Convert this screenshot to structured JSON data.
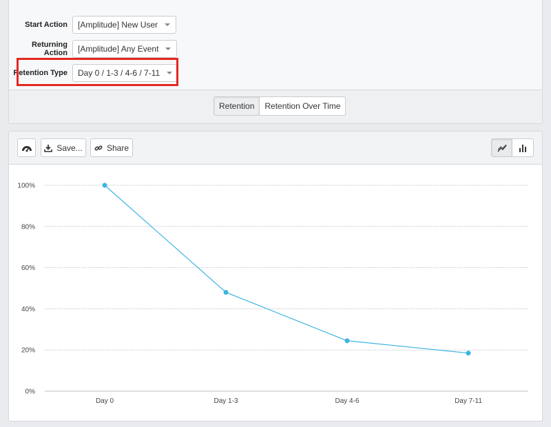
{
  "filters": {
    "start_action": {
      "label": "Start Action",
      "value": "[Amplitude] New User"
    },
    "returning_action": {
      "label": "Returning Action",
      "value": "[Amplitude] Any Event"
    },
    "retention_type": {
      "label": "Retention Type",
      "value": "Day 0 / 1-3 / 4-6 / 7-11"
    }
  },
  "view_tabs": [
    {
      "label": "Retention",
      "active": true
    },
    {
      "label": "Retention Over Time",
      "active": false
    }
  ],
  "toolbar": {
    "dashboard_icon": "dashboard-icon",
    "save_label": "Save...",
    "share_label": "Share",
    "line_chart_icon": "line-chart-icon",
    "bar_chart_icon": "bar-chart-icon"
  },
  "colors": {
    "series": "#3cb5e1",
    "highlight": "#e5261f"
  },
  "chart_data": {
    "type": "line",
    "categories": [
      "Day 0",
      "Day 1-3",
      "Day 4-6",
      "Day 7-11"
    ],
    "series": [
      {
        "values": [
          100,
          48,
          24.5,
          18.5
        ]
      }
    ],
    "y_ticks": [
      "0%",
      "20%",
      "40%",
      "60%",
      "80%",
      "100%"
    ],
    "ylim": [
      0,
      100
    ],
    "grid": true,
    "legend": "none"
  }
}
